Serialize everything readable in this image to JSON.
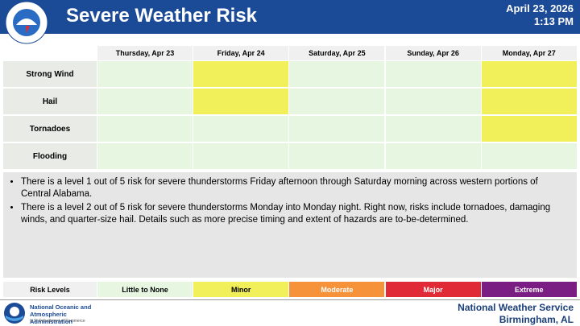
{
  "header": {
    "title": "Severe Weather Risk",
    "date": "April 23, 2026",
    "time": "1:13 PM"
  },
  "table": {
    "columns": [
      "Thursday, Apr 23",
      "Friday, Apr 24",
      "Saturday, Apr 25",
      "Sunday, Apr 26",
      "Monday, Apr 27"
    ],
    "rows": [
      "Strong Wind",
      "Hail",
      "Tornadoes",
      "Flooding"
    ],
    "risk": [
      [
        0,
        1,
        0,
        0,
        1
      ],
      [
        0,
        1,
        0,
        0,
        1
      ],
      [
        0,
        0,
        0,
        0,
        1
      ],
      [
        0,
        0,
        0,
        0,
        0
      ]
    ]
  },
  "bullets": [
    "There is a level 1 out of 5 risk for severe thunderstorms Friday afternoon through Saturday morning across western portions of Central Alabama.",
    "There is a level 2 out of 5 risk for severe thunderstorms Monday into Monday night. Right now, risks include tornadoes, damaging winds, and quarter-size hail. Details such as more precise timing and extent of hazards are to-be-determined."
  ],
  "legend": {
    "title": "Risk Levels",
    "levels": [
      {
        "label": "Little to None",
        "color": "#e6f6e0"
      },
      {
        "label": "Minor",
        "color": "#f2f05a"
      },
      {
        "label": "Moderate",
        "color": "#f5923a"
      },
      {
        "label": "Major",
        "color": "#e02a36"
      },
      {
        "label": "Extreme",
        "color": "#7a1e83"
      }
    ]
  },
  "footer": {
    "agency": "National Oceanic and Atmospheric Administration",
    "department": "U.S. Department of Commerce",
    "office": "National Weather Service",
    "location": "Birmingham, AL"
  }
}
